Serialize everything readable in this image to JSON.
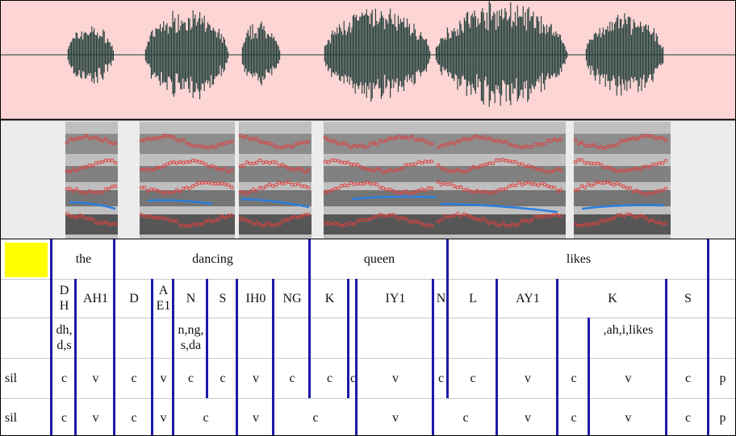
{
  "word_tier": [
    "the",
    "dancing",
    "queen",
    "likes"
  ],
  "phone_tier": [
    "D H",
    "AH1",
    "D",
    "A E1",
    "N",
    "S",
    "IH0",
    "NG",
    "K",
    "IY1",
    "N",
    "L",
    "AY1",
    "K",
    "S"
  ],
  "note_tier": [
    "dh, d,s",
    "n,ng, s,da",
    ",ah,i,likes"
  ],
  "class_tier": [
    "sil",
    "c",
    "v",
    "c",
    "v",
    "c",
    "c",
    "v",
    "c",
    "c",
    "c",
    "v",
    "c",
    "c",
    "v",
    "c",
    "v",
    "c",
    "p"
  ],
  "merged_tier": [
    "sil",
    "c",
    "v",
    "c",
    "v",
    "c",
    "v",
    "c",
    "v",
    "c",
    "v",
    "c",
    "v",
    "c",
    "p"
  ]
}
